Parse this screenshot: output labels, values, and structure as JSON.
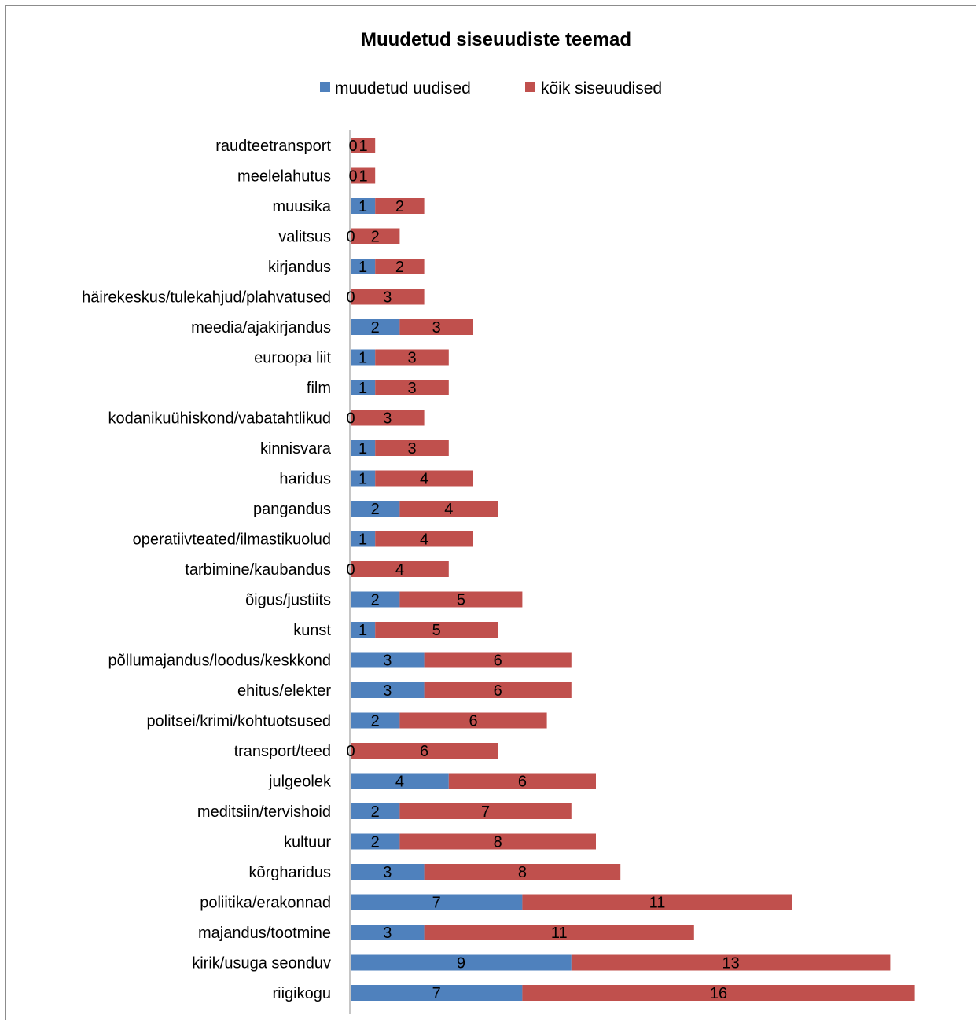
{
  "chart_data": {
    "type": "bar",
    "orientation": "horizontal",
    "stacked": true,
    "title": "Muudetud siseuudiste teemad",
    "legend_position": "top",
    "grid": false,
    "categories": [
      "raudteetransport",
      "meelelahutus",
      "muusika",
      "valitsus",
      "kirjandus",
      "häirekeskus/tulekahjud/plahvatused",
      "meedia/ajakirjandus",
      "euroopa liit",
      "film",
      "kodanikuühiskond/vabatahtlikud",
      "kinnisvara",
      "haridus",
      "pangandus",
      "operatiivteated/ilmastikuolud",
      "tarbimine/kaubandus",
      "õigus/justiits",
      "kunst",
      "põllumajandus/loodus/keskkond",
      "ehitus/elekter",
      "politsei/krimi/kohtuotsused",
      "transport/teed",
      "julgeolek",
      "meditsiin/tervishoid",
      "kultuur",
      "kõrgharidus",
      "poliitika/erakonnad",
      "majandus/tootmine",
      "kirik/usuga seonduv",
      "riigikogu"
    ],
    "series": [
      {
        "name": "muudetud uudised",
        "color": "#4f81bd",
        "values": [
          0,
          0,
          1,
          0,
          1,
          0,
          2,
          1,
          1,
          0,
          1,
          1,
          2,
          1,
          0,
          2,
          1,
          3,
          3,
          2,
          0,
          4,
          2,
          2,
          3,
          7,
          3,
          9,
          7
        ]
      },
      {
        "name": "kõik siseuudised",
        "color": "#c0504d",
        "values": [
          1,
          1,
          2,
          2,
          2,
          3,
          3,
          3,
          3,
          3,
          3,
          4,
          4,
          4,
          4,
          5,
          5,
          6,
          6,
          6,
          6,
          6,
          7,
          8,
          8,
          11,
          11,
          13,
          16
        ]
      }
    ]
  }
}
